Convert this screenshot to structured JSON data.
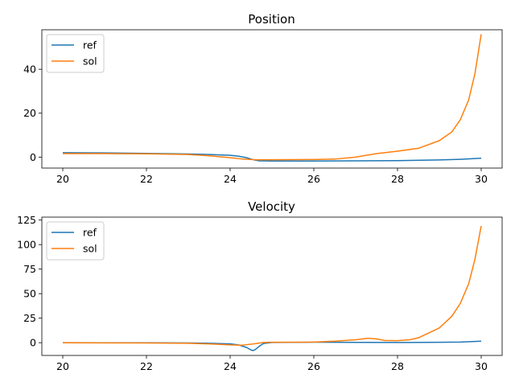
{
  "chart_data": [
    {
      "type": "line",
      "title": "Position",
      "xlabel": "",
      "ylabel": "",
      "xlim": [
        19.5,
        30.5
      ],
      "ylim": [
        -5,
        58
      ],
      "xticks": [
        20,
        22,
        24,
        26,
        28,
        30
      ],
      "yticks": [
        0,
        20,
        40
      ],
      "legend": "top-left",
      "grid": false,
      "series": [
        {
          "name": "ref",
          "color": "#1f77b4",
          "x": [
            20,
            21,
            22,
            23,
            23.5,
            24,
            24.2,
            24.4,
            24.5,
            24.6,
            24.7,
            25,
            26,
            27,
            28,
            29,
            29.5,
            30
          ],
          "y": [
            2.0,
            1.9,
            1.7,
            1.4,
            1.2,
            0.8,
            0.4,
            -0.3,
            -0.9,
            -1.4,
            -1.7,
            -1.8,
            -1.8,
            -1.7,
            -1.6,
            -1.3,
            -1.0,
            -0.5
          ]
        },
        {
          "name": "sol",
          "color": "#ff7f0e",
          "x": [
            20,
            21,
            22,
            23,
            23.5,
            24,
            24.3,
            24.6,
            25,
            26,
            26.5,
            27,
            27.5,
            28,
            28.5,
            29,
            29.3,
            29.5,
            29.7,
            29.85,
            30
          ],
          "y": [
            1.6,
            1.6,
            1.5,
            1.2,
            0.6,
            -0.3,
            -0.9,
            -1.2,
            -1.2,
            -1.1,
            -0.9,
            0.0,
            1.6,
            2.7,
            4.0,
            7.5,
            11.5,
            17.0,
            26.0,
            38.0,
            56.0
          ]
        }
      ]
    },
    {
      "type": "line",
      "title": "Velocity",
      "xlabel": "",
      "ylabel": "",
      "xlim": [
        19.5,
        30.5
      ],
      "ylim": [
        -13,
        128
      ],
      "xticks": [
        20,
        22,
        24,
        26,
        28,
        30
      ],
      "yticks": [
        0,
        25,
        50,
        75,
        100,
        125
      ],
      "legend": "top-left",
      "grid": false,
      "series": [
        {
          "name": "ref",
          "color": "#1f77b4",
          "x": [
            20,
            22,
            23,
            23.5,
            24,
            24.2,
            24.4,
            24.5,
            24.55,
            24.6,
            24.7,
            24.8,
            25,
            26,
            27,
            28,
            29,
            29.5,
            30
          ],
          "y": [
            0.0,
            -0.1,
            -0.3,
            -0.6,
            -1.2,
            -2.2,
            -5.0,
            -7.5,
            -8.0,
            -7.0,
            -3.5,
            -0.8,
            0.2,
            0.5,
            0.3,
            0.2,
            0.4,
            0.6,
            1.5
          ]
        },
        {
          "name": "sol",
          "color": "#ff7f0e",
          "x": [
            20,
            22,
            23,
            23.5,
            24,
            24.3,
            24.6,
            24.8,
            25,
            26,
            26.5,
            27,
            27.3,
            27.5,
            27.7,
            28,
            28.3,
            28.5,
            29,
            29.3,
            29.5,
            29.7,
            29.85,
            30
          ],
          "y": [
            -0.1,
            -0.3,
            -0.6,
            -1.2,
            -2.2,
            -2.5,
            -1.0,
            0.2,
            0.4,
            0.6,
            1.5,
            3.0,
            4.5,
            3.8,
            2.3,
            2.1,
            3.0,
            5.0,
            15.0,
            27.0,
            40.0,
            60.0,
            85.0,
            119.0
          ]
        }
      ]
    }
  ]
}
